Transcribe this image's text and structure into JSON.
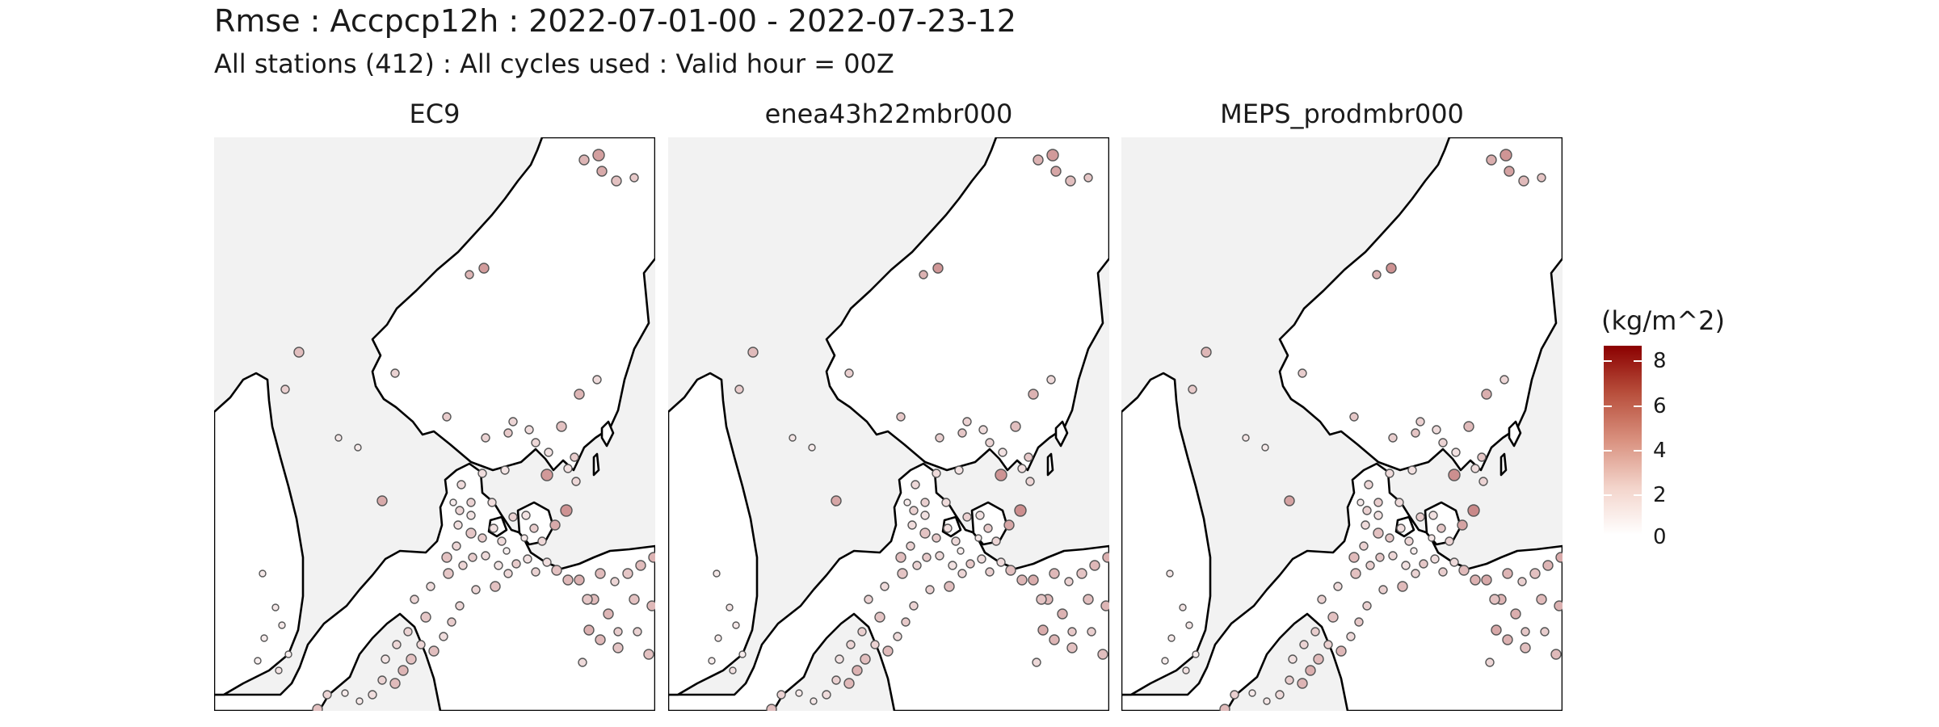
{
  "header": {
    "title": "Rmse : Accpcp12h : 2022-07-01-00 - 2022-07-23-12",
    "subtitle": "All stations (412) : All cycles used : Valid hour = 00Z"
  },
  "panels": [
    {
      "title": "EC9"
    },
    {
      "title": "enea43h22mbr000"
    },
    {
      "title": "MEPS_prodmbr000"
    }
  ],
  "legend": {
    "title": "(kg/m^2)",
    "labels": [
      "8",
      "6",
      "4",
      "2",
      "0"
    ],
    "min": 0,
    "max": 9,
    "colors": {
      "low": "#ffffff",
      "high": "#8b0000"
    }
  }
}
